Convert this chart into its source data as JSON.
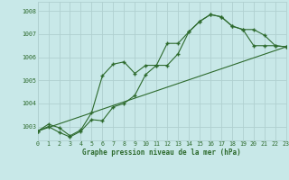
{
  "background_color": "#c8e8e8",
  "grid_color": "#b0d0d0",
  "line_color": "#2d6a2d",
  "title": "Graphe pression niveau de la mer (hPa)",
  "xlim": [
    0,
    23
  ],
  "ylim": [
    1002.4,
    1008.4
  ],
  "yticks": [
    1003,
    1004,
    1005,
    1006,
    1007,
    1008
  ],
  "xticks": [
    0,
    1,
    2,
    3,
    4,
    5,
    6,
    7,
    8,
    9,
    10,
    11,
    12,
    13,
    14,
    15,
    16,
    17,
    18,
    19,
    20,
    21,
    22,
    23
  ],
  "series1_x": [
    0,
    1,
    2,
    3,
    4,
    5,
    6,
    7,
    8,
    9,
    10,
    11,
    12,
    13,
    14,
    15,
    16,
    17,
    18,
    19,
    20,
    21,
    22,
    23
  ],
  "series1_y": [
    1002.8,
    1003.1,
    1002.95,
    1002.6,
    1002.85,
    1003.6,
    1005.2,
    1005.7,
    1005.8,
    1005.3,
    1005.65,
    1005.65,
    1006.6,
    1006.6,
    1007.1,
    1007.55,
    1007.85,
    1007.75,
    1007.35,
    1007.2,
    1006.5,
    1006.5,
    1006.5,
    1006.45
  ],
  "series2_x": [
    0,
    1,
    2,
    3,
    4,
    5,
    6,
    7,
    8,
    9,
    10,
    11,
    12,
    13,
    14,
    15,
    16,
    17,
    18,
    19,
    20,
    21,
    22,
    23
  ],
  "series2_y": [
    1002.8,
    1003.0,
    1002.75,
    1002.55,
    1002.8,
    1003.3,
    1003.25,
    1003.85,
    1004.0,
    1004.35,
    1005.25,
    1005.65,
    1005.65,
    1006.15,
    1007.1,
    1007.55,
    1007.85,
    1007.75,
    1007.35,
    1007.2,
    1007.2,
    1006.95,
    1006.5,
    1006.45
  ],
  "series3_x": [
    0,
    23
  ],
  "series3_y": [
    1002.8,
    1006.45
  ]
}
